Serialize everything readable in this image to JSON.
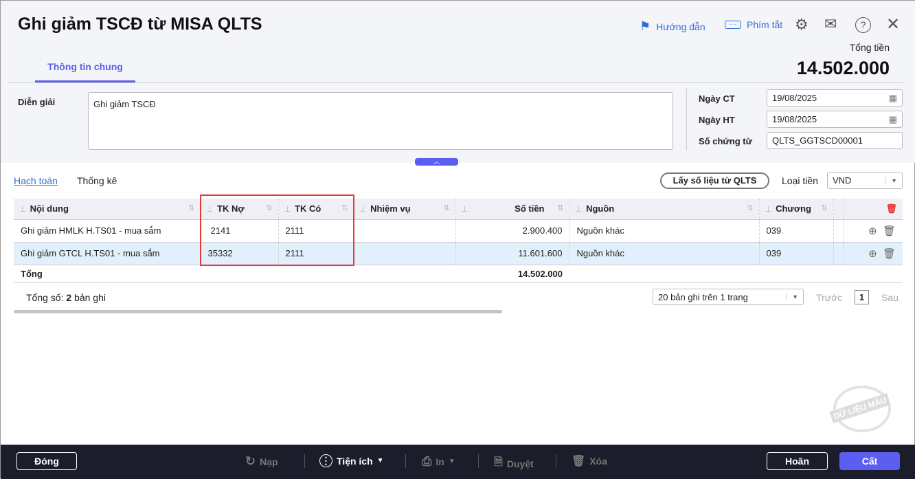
{
  "title": "Ghi giảm TSCĐ từ MISA QLTS",
  "toolbar": {
    "guide": "Hướng dẫn",
    "shortcuts": "Phím tắt"
  },
  "total": {
    "label": "Tổng tiền",
    "value": "14.502.000"
  },
  "tabs": {
    "general": "Thông tin chung"
  },
  "form": {
    "desc_label": "Diễn giải",
    "desc_value": "Ghi giảm TSCĐ",
    "date_ct_label": "Ngày CT",
    "date_ct": "19/08/2025",
    "date_ht_label": "Ngày HT",
    "date_ht": "19/08/2025",
    "voucher_label": "Số chứng từ",
    "voucher": "QLTS_GGTSCD00001"
  },
  "detail": {
    "tab_accounting": "Hạch toán",
    "tab_stats": "Thống kê",
    "fetch_button": "Lấy số liệu từ QLTS",
    "currency_label": "Loại tiền",
    "currency": "VND"
  },
  "table": {
    "headers": [
      "Nội dung",
      "TK Nợ",
      "TK Có",
      "Nhiệm vụ",
      "Số tiền",
      "Nguồn",
      "Chương"
    ],
    "rows": [
      {
        "content": "Ghi giảm HMLK H.TS01 - mua sắm",
        "debit": "2141",
        "credit": "2111",
        "task": "",
        "amount": "2.900.400",
        "source": "Nguồn khác",
        "chapter": "039"
      },
      {
        "content": "Ghi giảm GTCL H.TS01 - mua sắm",
        "debit": "35332",
        "credit": "2111",
        "task": "",
        "amount": "11.601.600",
        "source": "Nguồn khác",
        "chapter": "039"
      }
    ],
    "total_label": "Tổng",
    "total_amount": "14.502.000"
  },
  "paging": {
    "count_prefix": "Tổng số: ",
    "count": "2",
    "count_suffix": " bản ghi",
    "page_size": "20 bản ghi trên 1 trang",
    "prev": "Trước",
    "page": "1",
    "next": "Sau"
  },
  "watermark": "DỮ LIỆU MẪU",
  "footer": {
    "close": "Đóng",
    "reload": "Nạp",
    "utilities": "Tiện ích",
    "print": "In",
    "approve": "Duyệt",
    "delete": "Xóa",
    "postpone": "Hoãn",
    "save": "Cất"
  },
  "colors": {
    "accent": "#5b5ef0",
    "link": "#2c6fd6",
    "highlight": "#e53935",
    "footer_bg": "#1b1d2b"
  }
}
